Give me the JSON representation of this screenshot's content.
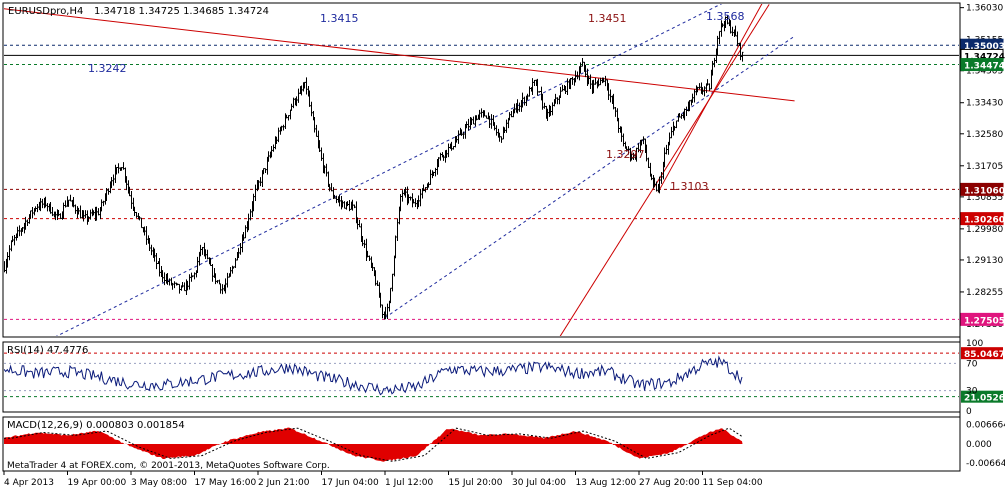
{
  "header": {
    "symbol": "EURUSDpro,H4",
    "ohlc": "1.34718 1.34725 1.34685 1.34724"
  },
  "footer": {
    "copyright": "MetaTrader 4 at FOREX.com, © 2001-2013, MetaQuotes Software Corp."
  },
  "colors": {
    "background": "#ffffff",
    "candles": "#000000",
    "trend_red": "#cc0000",
    "channel_blue": "#1f2b9e",
    "level_dark_red": "#8b0000",
    "level_red": "#cc0000",
    "level_magenta": "#e0157e",
    "current_price_badge": "#0b2a6b",
    "support_green": "#0a7a2a",
    "macd_histogram": "#e00000",
    "rsi_line": "#0a1a7a"
  },
  "annotations": [
    {
      "text": "1.3415",
      "color": "#1f2b9e"
    },
    {
      "text": "1.3451",
      "color": "#8b1010"
    },
    {
      "text": "1.3568",
      "color": "#1f2b9e"
    },
    {
      "text": "1.3242",
      "color": "#1f2b9e"
    },
    {
      "text": "1.3297",
      "color": "#8b1010"
    },
    {
      "text": "1.3103",
      "color": "#8b1010"
    }
  ],
  "chart_data": [
    {
      "type": "line",
      "title": "EURUSDpro,H4",
      "ohlc_last": {
        "open": 1.34718,
        "high": 1.34725,
        "low": 1.34685,
        "close": 1.34724
      },
      "y_ticks": [
        "1.36030",
        "1.35155",
        "1.34305",
        "1.33430",
        "1.32580",
        "1.31705",
        "1.30855",
        "1.29980",
        "1.29130",
        "1.28255",
        "1.27380"
      ],
      "ylim": [
        1.2705,
        1.3613
      ],
      "price_tags": [
        {
          "label": "1.35003",
          "value": 1.35003,
          "color": "#0b2a6b",
          "style": "dashed"
        },
        {
          "label": "1.34724",
          "value": 1.34724,
          "color": "#000000",
          "style": "solid"
        },
        {
          "label": "1.34474",
          "value": 1.34474,
          "color": "#0a7a2a",
          "style": "dashed"
        },
        {
          "label": "1.31060",
          "value": 1.3106,
          "color": "#8b0000",
          "style": "dashed"
        },
        {
          "label": "1.30260",
          "value": 1.3026,
          "color": "#cc0000",
          "style": "dashed"
        },
        {
          "label": "1.27505",
          "value": 1.27505,
          "color": "#e0157e",
          "style": "dashed"
        }
      ],
      "x_labels": [
        "4 Apr 2013",
        "19 Apr 00:00",
        "3 May 08:00",
        "17 May 16:00",
        "2 Jun 21:00",
        "17 Jun 04:00",
        "1 Jul 12:00",
        "15 Jul 20:00",
        "30 Jul 04:00",
        "13 Aug 12:00",
        "27 Aug 20:00",
        "11 Sep 04:00"
      ],
      "x_positions": [
        0,
        1,
        2,
        3,
        4,
        5,
        6,
        7,
        8,
        9,
        10,
        11
      ],
      "price_path": [
        [
          0.0,
          1.2895
        ],
        [
          0.1,
          1.2955
        ],
        [
          0.3,
          1.3008
        ],
        [
          0.5,
          1.306
        ],
        [
          0.65,
          1.3068
        ],
        [
          0.85,
          1.3025
        ],
        [
          1.0,
          1.308
        ],
        [
          1.25,
          1.3025
        ],
        [
          1.5,
          1.3045
        ],
        [
          1.7,
          1.314
        ],
        [
          1.85,
          1.3175
        ],
        [
          2.0,
          1.3075
        ],
        [
          2.25,
          1.2965
        ],
        [
          2.45,
          1.288
        ],
        [
          2.6,
          1.285
        ],
        [
          2.8,
          1.283
        ],
        [
          3.0,
          1.2875
        ],
        [
          3.1,
          1.2948
        ],
        [
          3.3,
          1.2868
        ],
        [
          3.45,
          1.283
        ],
        [
          3.6,
          1.2895
        ],
        [
          3.8,
          1.3
        ],
        [
          3.95,
          1.3098
        ],
        [
          4.15,
          1.3185
        ],
        [
          4.3,
          1.325
        ],
        [
          4.55,
          1.3345
        ],
        [
          4.75,
          1.3392
        ],
        [
          4.85,
          1.3295
        ],
        [
          5.0,
          1.3182
        ],
        [
          5.15,
          1.3095
        ],
        [
          5.3,
          1.3068
        ],
        [
          5.5,
          1.3055
        ],
        [
          5.7,
          1.293
        ],
        [
          5.85,
          1.2855
        ],
        [
          5.95,
          1.277
        ],
        [
          6.05,
          1.2775
        ],
        [
          6.15,
          1.2955
        ],
        [
          6.25,
          1.31
        ],
        [
          6.45,
          1.3065
        ],
        [
          6.65,
          1.3118
        ],
        [
          6.85,
          1.3195
        ],
        [
          7.05,
          1.3225
        ],
        [
          7.25,
          1.327
        ],
        [
          7.45,
          1.3308
        ],
        [
          7.6,
          1.331
        ],
        [
          7.8,
          1.3245
        ],
        [
          8.0,
          1.3318
        ],
        [
          8.2,
          1.3355
        ],
        [
          8.35,
          1.3398
        ],
        [
          8.55,
          1.3305
        ],
        [
          8.75,
          1.3368
        ],
        [
          8.95,
          1.3405
        ],
        [
          9.1,
          1.3445
        ],
        [
          9.25,
          1.3385
        ],
        [
          9.45,
          1.3412
        ],
        [
          9.6,
          1.3325
        ],
        [
          9.75,
          1.3228
        ],
        [
          9.9,
          1.3192
        ],
        [
          10.05,
          1.3245
        ],
        [
          10.2,
          1.3118
        ],
        [
          10.3,
          1.3105
        ],
        [
          10.4,
          1.3198
        ],
        [
          10.55,
          1.3285
        ],
        [
          10.75,
          1.3325
        ],
        [
          10.9,
          1.3375
        ],
        [
          11.1,
          1.3385
        ],
        [
          11.25,
          1.3542
        ],
        [
          11.35,
          1.3568
        ],
        [
          11.5,
          1.3532
        ],
        [
          11.6,
          1.3478
        ],
        [
          11.63,
          1.3472
        ]
      ],
      "trendlines": [
        {
          "from": [
            -0.1,
            1.3602
          ],
          "to": [
            12.45,
            1.3348
          ],
          "color": "#cc0000",
          "style": "solid"
        },
        {
          "from": [
            0.8,
            1.2702
          ],
          "to": [
            11.35,
            1.3618
          ],
          "color": "#1f2b9e",
          "style": "dashed"
        },
        {
          "from": [
            6.0,
            1.2755
          ],
          "to": [
            12.45,
            1.3525
          ],
          "color": "#1f2b9e",
          "style": "dashed"
        },
        {
          "from": [
            8.75,
            1.2702
          ],
          "to": [
            12.05,
            1.3612
          ],
          "color": "#cc0000",
          "style": "solid"
        },
        {
          "from": [
            10.3,
            1.3098
          ],
          "to": [
            11.95,
            1.3618
          ],
          "color": "#cc0000",
          "style": "solid"
        }
      ]
    },
    {
      "type": "line",
      "title": "RSI(14) 47.4776",
      "y_ticks": [
        "100",
        "70",
        "30",
        "0"
      ],
      "ylim": [
        0,
        100
      ],
      "levels": [
        {
          "label": "85.04673",
          "value": 85.04673,
          "color": "#cc0000"
        },
        {
          "label": "21.05263",
          "value": 21.05263,
          "color": "#0a7a2a"
        }
      ],
      "x": [
        0,
        0.5,
        1,
        1.5,
        2,
        2.5,
        3,
        3.5,
        4,
        4.5,
        5,
        5.5,
        6,
        6.5,
        7,
        7.5,
        8,
        8.5,
        9,
        9.5,
        10,
        10.5,
        11,
        11.3,
        11.63
      ],
      "values": [
        62,
        55,
        58,
        50,
        40,
        38,
        45,
        52,
        57,
        65,
        50,
        40,
        30,
        35,
        62,
        58,
        60,
        65,
        56,
        58,
        38,
        42,
        68,
        72,
        47.4776
      ]
    },
    {
      "type": "area",
      "title": "MACD(12,26,9) 0.000803 0.001854",
      "y_ticks": [
        "0.006664",
        "0.000",
        "-0.006646"
      ],
      "ylim": [
        -0.009,
        0.009
      ],
      "x": [
        0,
        0.5,
        1,
        1.5,
        2,
        2.5,
        3,
        3.5,
        4,
        4.5,
        5,
        5.5,
        6,
        6.5,
        7,
        7.5,
        8,
        8.5,
        9,
        9.5,
        10,
        10.5,
        11,
        11.3,
        11.63
      ],
      "values": [
        0.002,
        0.004,
        0.003,
        0.0045,
        -0.001,
        -0.005,
        -0.004,
        0.001,
        0.004,
        0.0055,
        0.001,
        -0.004,
        -0.006,
        -0.004,
        0.0055,
        0.003,
        0.0035,
        0.002,
        0.0045,
        0.001,
        -0.005,
        -0.003,
        0.003,
        0.0055,
        0.000803
      ],
      "signal": 0.001854
    }
  ]
}
